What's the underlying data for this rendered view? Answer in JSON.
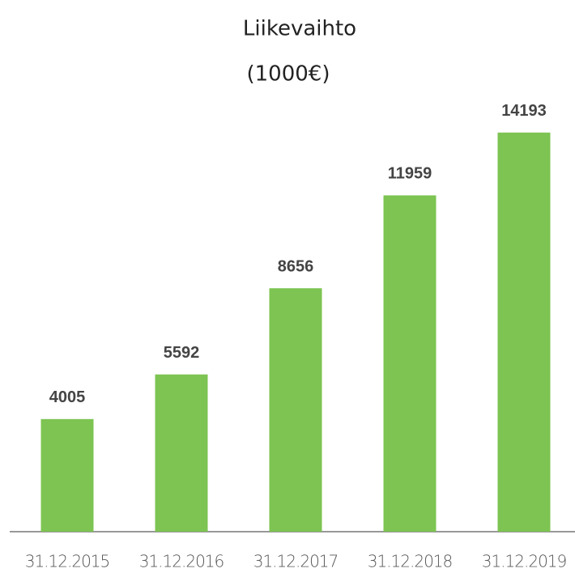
{
  "chart_data": {
    "type": "bar",
    "title": "Liikevaihto",
    "subtitle": "(1000€)",
    "categories": [
      "31.12.2015",
      "31.12.2016",
      "31.12.2017",
      "31.12.2018",
      "31.12.2019"
    ],
    "values": [
      4005,
      5592,
      8656,
      11959,
      14193
    ],
    "color": "#7dc452",
    "ylim": [
      0,
      16000
    ]
  }
}
